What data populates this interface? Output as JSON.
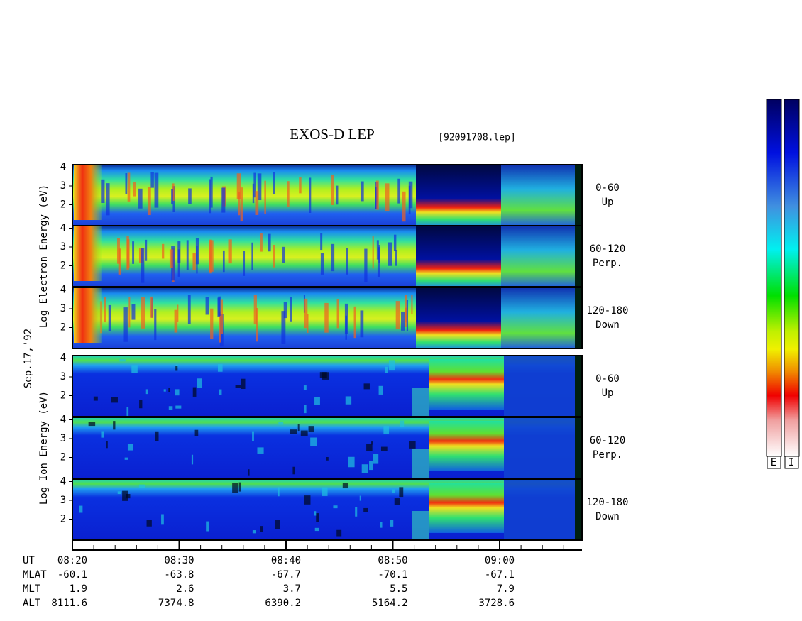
{
  "title": "EXOS-D LEP",
  "file": "[92091708.lep]",
  "date": "Sep.17,'92",
  "electron_ylabel": "Log   Electron   Energy (eV)",
  "ion_ylabel": "Log   Ion   Energy (eV)",
  "yticks": [
    2,
    3,
    4
  ],
  "electron_panels": [
    {
      "range": "0-60",
      "direction": "Up"
    },
    {
      "range": "60-120",
      "direction": "Perp."
    },
    {
      "range": "120-180",
      "direction": "Down"
    }
  ],
  "ion_panels": [
    {
      "range": "0-60",
      "direction": "Up"
    },
    {
      "range": "60-120",
      "direction": "Perp."
    },
    {
      "range": "120-180",
      "direction": "Down"
    }
  ],
  "ephemeris": {
    "row_labels": [
      "UT",
      "MLAT",
      "MLT",
      "ALT"
    ],
    "UT": [
      "08:20",
      "08:30",
      "08:40",
      "08:50",
      "09:00"
    ],
    "MLAT": [
      -60.1,
      -63.8,
      -67.7,
      -70.1,
      -67.1
    ],
    "MLT": [
      1.9,
      2.6,
      3.7,
      5.5,
      7.9
    ],
    "ALT": [
      8111.6,
      7374.8,
      6390.2,
      5164.2,
      3728.6
    ]
  },
  "colorbar_labels": [
    "E",
    "I"
  ]
}
